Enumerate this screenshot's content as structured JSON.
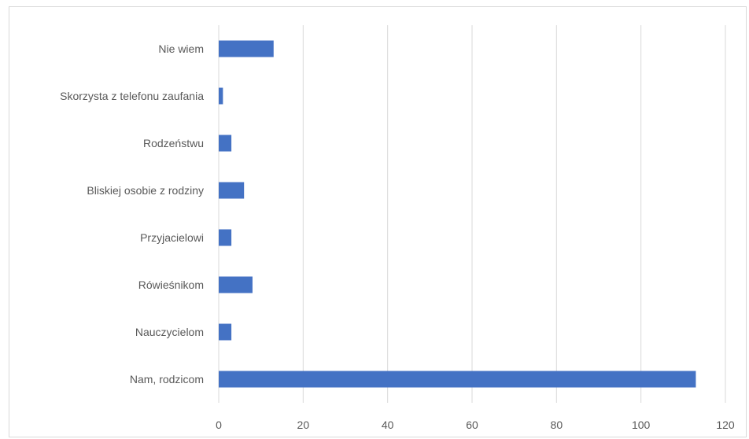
{
  "chart_data": {
    "type": "bar",
    "orientation": "horizontal",
    "categories": [
      "Nie wiem",
      "Skorzysta z telefonu zaufania",
      "Rodzeństwu",
      "Bliskiej osobie z rodziny",
      "Przyjacielowi",
      "Rówieśnikom",
      "Nauczycielom",
      "Nam, rodzicom"
    ],
    "values": [
      13,
      1,
      3,
      6,
      3,
      8,
      3,
      113
    ],
    "xlim": [
      0,
      120
    ],
    "xticks": [
      "0",
      "20",
      "40",
      "60",
      "80",
      "100",
      "120"
    ],
    "grid": true,
    "legend": "none",
    "title": "",
    "xlabel": "",
    "ylabel": "",
    "colors": {
      "bar": "#4472c4",
      "grid": "#d9d9d9",
      "text": "#595959"
    }
  }
}
